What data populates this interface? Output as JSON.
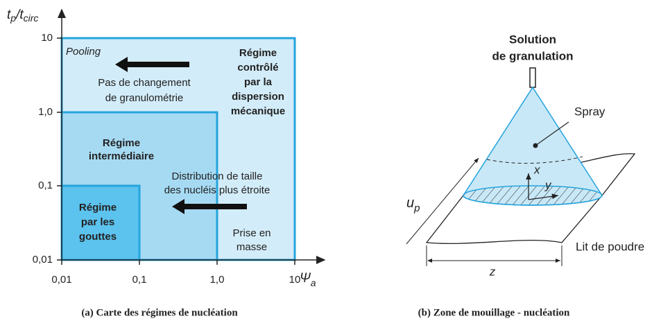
{
  "panel_a": {
    "y_axis_label": {
      "main": "t",
      "sub1": "p",
      "slash": "/t",
      "sub2": "circ"
    },
    "x_axis_label": {
      "main": "Ψ",
      "sub": "a"
    },
    "y_ticks": [
      "10",
      "1,0",
      "0,1",
      "0,01"
    ],
    "x_ticks": [
      "0,01",
      "0,1",
      "1,0",
      "10"
    ],
    "regions": {
      "pooling": "Pooling",
      "mechanical": [
        "Régime",
        "contrôlé",
        "par la",
        "dispersion",
        "mécanique"
      ],
      "no_change": [
        "Pas de changement",
        "de granulométrie"
      ],
      "intermediate": [
        "Régime",
        "intermédiaire"
      ],
      "distribution": [
        "Distribution de taille",
        "des nucléis plus étroite"
      ],
      "drops": [
        "Régime",
        "par les",
        "gouttes"
      ],
      "caking": [
        "Prise en",
        "masse"
      ]
    },
    "caption": "(a) Carte des régimes de nucléation"
  },
  "panel_b": {
    "solution": [
      "Solution",
      "de granulation"
    ],
    "spray": "Spray",
    "axis_x": "x",
    "axis_y": "y",
    "velocity": {
      "main": "u",
      "sub": "p"
    },
    "width": "z",
    "bed": "Lit de poudre",
    "caption": "(b) Zone de mouillage - nucléation"
  }
}
